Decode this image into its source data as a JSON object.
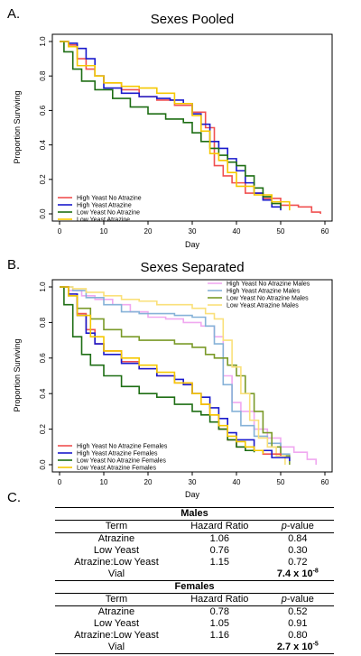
{
  "chart_data": [
    {
      "type": "line",
      "panel": "A.",
      "title": "Sexes Pooled",
      "xlabel": "Day",
      "ylabel": "Proportion Surviving",
      "xlim": [
        0,
        60
      ],
      "ylim": [
        0,
        1
      ],
      "xticks": [
        0,
        10,
        20,
        30,
        40,
        50,
        60
      ],
      "yticks": [
        0.0,
        0.2,
        0.4,
        0.6,
        0.8,
        1.0
      ],
      "ytick_labels": [
        "0.0",
        "0.2",
        "0.4",
        "0.6",
        "0.8",
        "1.0"
      ],
      "legend_position": "bottom-left",
      "series": [
        {
          "name": "High Yeast No Atrazine",
          "color": "#f05050",
          "points": [
            [
              0,
              1.0
            ],
            [
              2,
              0.98
            ],
            [
              4,
              0.9
            ],
            [
              6,
              0.84
            ],
            [
              8,
              0.8
            ],
            [
              10,
              0.76
            ],
            [
              14,
              0.72
            ],
            [
              18,
              0.68
            ],
            [
              22,
              0.66
            ],
            [
              26,
              0.63
            ],
            [
              30,
              0.59
            ],
            [
              33,
              0.5
            ],
            [
              35,
              0.28
            ],
            [
              37,
              0.22
            ],
            [
              39,
              0.18
            ],
            [
              42,
              0.12
            ],
            [
              46,
              0.09
            ],
            [
              50,
              0.05
            ],
            [
              54,
              0.04
            ],
            [
              57,
              0.01
            ],
            [
              59,
              0.0
            ]
          ]
        },
        {
          "name": "High Yeast Atrazine",
          "color": "#1a1acc",
          "points": [
            [
              0,
              1.0
            ],
            [
              2,
              0.99
            ],
            [
              4,
              0.96
            ],
            [
              6,
              0.9
            ],
            [
              8,
              0.8
            ],
            [
              10,
              0.73
            ],
            [
              14,
              0.7
            ],
            [
              18,
              0.68
            ],
            [
              22,
              0.67
            ],
            [
              25,
              0.66
            ],
            [
              28,
              0.64
            ],
            [
              30,
              0.58
            ],
            [
              32,
              0.52
            ],
            [
              34,
              0.42
            ],
            [
              36,
              0.38
            ],
            [
              38,
              0.32
            ],
            [
              40,
              0.25
            ],
            [
              42,
              0.18
            ],
            [
              44,
              0.12
            ],
            [
              46,
              0.08
            ],
            [
              48,
              0.04
            ],
            [
              50,
              0.02
            ]
          ]
        },
        {
          "name": "Low Yeast No Atrazine",
          "color": "#1e6e14",
          "points": [
            [
              0,
              1.0
            ],
            [
              1,
              0.94
            ],
            [
              3,
              0.84
            ],
            [
              5,
              0.77
            ],
            [
              8,
              0.72
            ],
            [
              12,
              0.67
            ],
            [
              16,
              0.62
            ],
            [
              20,
              0.58
            ],
            [
              24,
              0.55
            ],
            [
              28,
              0.53
            ],
            [
              30,
              0.47
            ],
            [
              32,
              0.42
            ],
            [
              34,
              0.38
            ],
            [
              36,
              0.34
            ],
            [
              38,
              0.3
            ],
            [
              40,
              0.28
            ],
            [
              42,
              0.22
            ],
            [
              44,
              0.15
            ],
            [
              46,
              0.1
            ],
            [
              48,
              0.06
            ],
            [
              50,
              0.03
            ]
          ]
        },
        {
          "name": "Low Yeast Atrazine",
          "color": "#f5c800",
          "points": [
            [
              0,
              1.0
            ],
            [
              2,
              0.97
            ],
            [
              4,
              0.86
            ],
            [
              8,
              0.8
            ],
            [
              10,
              0.76
            ],
            [
              14,
              0.74
            ],
            [
              18,
              0.73
            ],
            [
              22,
              0.7
            ],
            [
              26,
              0.64
            ],
            [
              30,
              0.57
            ],
            [
              32,
              0.48
            ],
            [
              34,
              0.35
            ],
            [
              36,
              0.31
            ],
            [
              38,
              0.24
            ],
            [
              40,
              0.16
            ],
            [
              44,
              0.11
            ],
            [
              48,
              0.07
            ],
            [
              52,
              0.02
            ]
          ]
        }
      ]
    },
    {
      "type": "line",
      "panel": "B.",
      "title": "Sexes Separated",
      "xlabel": "Day",
      "ylabel": "Proportion Surviving",
      "xlim": [
        0,
        60
      ],
      "ylim": [
        0,
        1
      ],
      "xticks": [
        0,
        10,
        20,
        30,
        40,
        50,
        60
      ],
      "yticks": [
        0.0,
        0.2,
        0.4,
        0.6,
        0.8,
        1.0
      ],
      "ytick_labels": [
        "0.0",
        "0.2",
        "0.4",
        "0.6",
        "0.8",
        "1.0"
      ],
      "legend_position": "top-right and bottom-left",
      "series": [
        {
          "name": "High Yeast No Atrazine Males",
          "color": "#f0a8f0",
          "legend_group": "top",
          "points": [
            [
              0,
              1.0
            ],
            [
              2,
              0.98
            ],
            [
              5,
              0.95
            ],
            [
              8,
              0.93
            ],
            [
              12,
              0.9
            ],
            [
              16,
              0.86
            ],
            [
              20,
              0.83
            ],
            [
              24,
              0.82
            ],
            [
              28,
              0.8
            ],
            [
              32,
              0.78
            ],
            [
              35,
              0.72
            ],
            [
              37,
              0.5
            ],
            [
              39,
              0.35
            ],
            [
              41,
              0.3
            ],
            [
              44,
              0.2
            ],
            [
              47,
              0.15
            ],
            [
              50,
              0.1
            ],
            [
              53,
              0.07
            ],
            [
              56,
              0.03
            ],
            [
              58,
              0.0
            ]
          ]
        },
        {
          "name": "High Yeast Atrazine Males",
          "color": "#86b2d8",
          "legend_group": "top",
          "points": [
            [
              0,
              1.0
            ],
            [
              3,
              0.98
            ],
            [
              6,
              0.94
            ],
            [
              10,
              0.9
            ],
            [
              14,
              0.86
            ],
            [
              18,
              0.85
            ],
            [
              22,
              0.85
            ],
            [
              26,
              0.84
            ],
            [
              30,
              0.83
            ],
            [
              33,
              0.78
            ],
            [
              35,
              0.68
            ],
            [
              37,
              0.45
            ],
            [
              39,
              0.3
            ],
            [
              41,
              0.22
            ],
            [
              44,
              0.16
            ],
            [
              47,
              0.12
            ],
            [
              50,
              0.06
            ],
            [
              52,
              0.02
            ]
          ]
        },
        {
          "name": "Low Yeast No Atrazine Males",
          "color": "#7a9a28",
          "legend_group": "top",
          "points": [
            [
              0,
              1.0
            ],
            [
              2,
              0.95
            ],
            [
              4,
              0.88
            ],
            [
              7,
              0.82
            ],
            [
              10,
              0.76
            ],
            [
              14,
              0.72
            ],
            [
              18,
              0.7
            ],
            [
              22,
              0.7
            ],
            [
              26,
              0.68
            ],
            [
              30,
              0.66
            ],
            [
              33,
              0.62
            ],
            [
              35,
              0.6
            ],
            [
              38,
              0.56
            ],
            [
              40,
              0.5
            ],
            [
              42,
              0.4
            ],
            [
              44,
              0.3
            ],
            [
              46,
              0.18
            ],
            [
              48,
              0.1
            ],
            [
              50,
              0.05
            ],
            [
              52,
              0.0
            ]
          ]
        },
        {
          "name": "Low Yeast Atrazine Males",
          "color": "#fae07a",
          "legend_group": "top",
          "points": [
            [
              0,
              1.0
            ],
            [
              3,
              0.99
            ],
            [
              6,
              0.97
            ],
            [
              10,
              0.95
            ],
            [
              14,
              0.93
            ],
            [
              18,
              0.92
            ],
            [
              22,
              0.9
            ],
            [
              26,
              0.9
            ],
            [
              30,
              0.88
            ],
            [
              33,
              0.85
            ],
            [
              35,
              0.82
            ],
            [
              37,
              0.7
            ],
            [
              39,
              0.55
            ],
            [
              41,
              0.4
            ],
            [
              43,
              0.25
            ],
            [
              45,
              0.15
            ],
            [
              47,
              0.1
            ],
            [
              49,
              0.05
            ],
            [
              51,
              0.0
            ]
          ]
        },
        {
          "name": "High Yeast No Atrazine Females",
          "color": "#f05050",
          "legend_group": "bottom",
          "points": [
            [
              0,
              1.0
            ],
            [
              2,
              0.96
            ],
            [
              4,
              0.85
            ],
            [
              6,
              0.76
            ],
            [
              8,
              0.68
            ],
            [
              10,
              0.64
            ],
            [
              14,
              0.58
            ],
            [
              18,
              0.54
            ],
            [
              22,
              0.5
            ],
            [
              26,
              0.46
            ],
            [
              30,
              0.4
            ],
            [
              32,
              0.34
            ],
            [
              34,
              0.28
            ],
            [
              36,
              0.2
            ],
            [
              38,
              0.14
            ],
            [
              40,
              0.1
            ],
            [
              42,
              0.08
            ],
            [
              46,
              0.06
            ],
            [
              50,
              0.05
            ]
          ]
        },
        {
          "name": "High Yeast Atrazine Females",
          "color": "#1a1acc",
          "legend_group": "bottom",
          "points": [
            [
              0,
              1.0
            ],
            [
              2,
              0.96
            ],
            [
              4,
              0.84
            ],
            [
              6,
              0.74
            ],
            [
              8,
              0.68
            ],
            [
              10,
              0.62
            ],
            [
              14,
              0.57
            ],
            [
              18,
              0.54
            ],
            [
              22,
              0.5
            ],
            [
              26,
              0.48
            ],
            [
              28,
              0.45
            ],
            [
              30,
              0.4
            ],
            [
              32,
              0.38
            ],
            [
              34,
              0.32
            ],
            [
              36,
              0.26
            ],
            [
              38,
              0.18
            ],
            [
              40,
              0.14
            ],
            [
              44,
              0.08
            ],
            [
              48,
              0.04
            ],
            [
              52,
              0.02
            ]
          ]
        },
        {
          "name": "Low Yeast No Atrazine Females",
          "color": "#1e6e14",
          "legend_group": "bottom",
          "points": [
            [
              0,
              1.0
            ],
            [
              1,
              0.9
            ],
            [
              3,
              0.72
            ],
            [
              5,
              0.62
            ],
            [
              7,
              0.56
            ],
            [
              10,
              0.5
            ],
            [
              14,
              0.44
            ],
            [
              18,
              0.4
            ],
            [
              22,
              0.38
            ],
            [
              26,
              0.34
            ],
            [
              30,
              0.3
            ],
            [
              32,
              0.28
            ],
            [
              34,
              0.24
            ],
            [
              36,
              0.2
            ],
            [
              38,
              0.14
            ],
            [
              40,
              0.1
            ],
            [
              42,
              0.08
            ],
            [
              44,
              0.07
            ]
          ]
        },
        {
          "name": "Low Yeast Atrazine Females",
          "color": "#f5c800",
          "legend_group": "bottom",
          "points": [
            [
              0,
              1.0
            ],
            [
              2,
              0.95
            ],
            [
              4,
              0.84
            ],
            [
              7,
              0.72
            ],
            [
              10,
              0.64
            ],
            [
              14,
              0.6
            ],
            [
              18,
              0.56
            ],
            [
              22,
              0.52
            ],
            [
              26,
              0.46
            ],
            [
              30,
              0.4
            ],
            [
              32,
              0.34
            ],
            [
              34,
              0.28
            ],
            [
              36,
              0.22
            ],
            [
              38,
              0.16
            ],
            [
              40,
              0.13
            ],
            [
              42,
              0.1
            ],
            [
              44,
              0.08
            ],
            [
              46,
              0.06
            ]
          ]
        }
      ]
    }
  ],
  "table": {
    "panel": "C.",
    "columns": [
      "Term",
      "Hazard Ratio",
      "p-value"
    ],
    "sections": [
      {
        "title": "Males",
        "rows": [
          {
            "term": "Atrazine",
            "hr": "1.06",
            "p": "0.84"
          },
          {
            "term": "Low Yeast",
            "hr": "0.76",
            "p": "0.30"
          },
          {
            "term": "Atrazine:Low Yeast",
            "hr": "1.15",
            "p": "0.72"
          },
          {
            "term": "Vial",
            "hr": "",
            "p_base": "7.4 x 10",
            "p_exp": "-8"
          }
        ]
      },
      {
        "title": "Females",
        "rows": [
          {
            "term": "Atrazine",
            "hr": "0.78",
            "p": "0.52"
          },
          {
            "term": "Low Yeast",
            "hr": "1.05",
            "p": "0.91"
          },
          {
            "term": "Atrazine:Low Yeast",
            "hr": "1.16",
            "p": "0.80"
          },
          {
            "term": "Vial",
            "hr": "",
            "p_base": "2.7 x 10",
            "p_exp": "-5"
          }
        ]
      }
    ]
  }
}
